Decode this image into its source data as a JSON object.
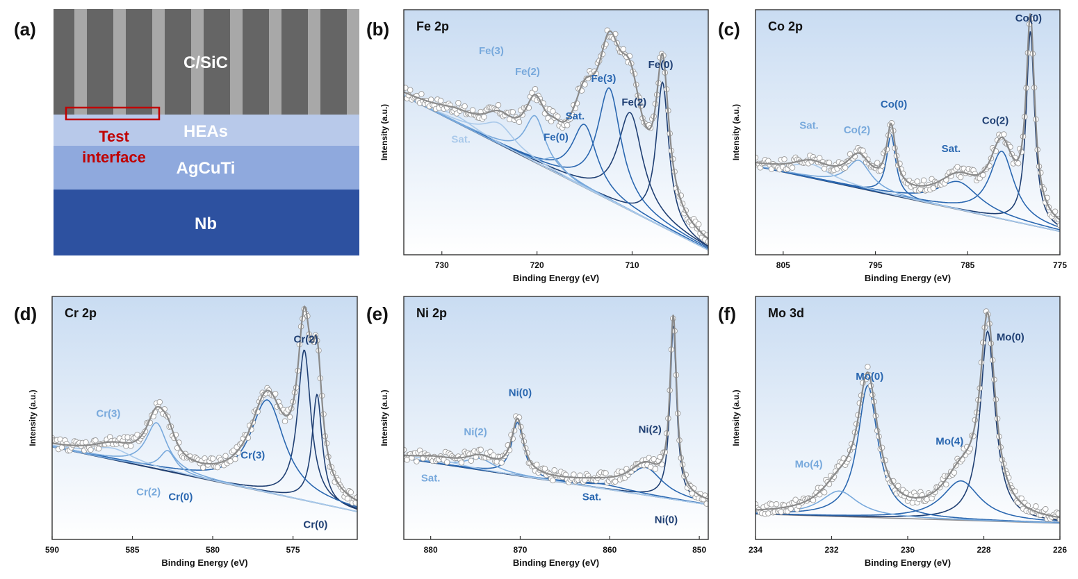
{
  "colors": {
    "series_dark": "#1f3f73",
    "series_mid": "#2a67b0",
    "series_light": "#78a9dc",
    "series_pale": "#a9c9ea",
    "envelope": "#8a8a8a",
    "background_line": "#8f8f93",
    "panel_bg_top": "#c9dcf2",
    "panel_bg_bottom": "#ffffff",
    "csic_dark": "#656565",
    "csic_light": "#a8a8a8",
    "heas": "#b8c9ea",
    "agcuti": "#8fa9dd",
    "nb": "#2d51a0",
    "test_label": "#c00000"
  },
  "panel_a": {
    "tag": "(a)",
    "layers": {
      "csic": "C/SiC",
      "heas": "HEAs",
      "agcuti": "AgCuTi",
      "nb": "Nb"
    },
    "test_line1": "Test",
    "test_line2": "interface"
  },
  "chart_data": [
    {
      "id": "b",
      "tag": "(b)",
      "type": "line",
      "title": "Fe 2p",
      "xlabel": "Binding Energy (eV)",
      "ylabel": "Intensity (a.u.)",
      "xlim": [
        734,
        702
      ],
      "ylim": [
        0,
        1.05
      ],
      "xticks": [
        730,
        720,
        710
      ],
      "background": [
        [
          734,
          0.68
        ],
        [
          702,
          0.02
        ]
      ],
      "peaks": [
        {
          "label": "Fe(0)",
          "center": 706.8,
          "height": 0.62,
          "width": 0.8,
          "color": "dark"
        },
        {
          "label": "Fe(2)",
          "center": 710.2,
          "height": 0.42,
          "width": 1.6,
          "color": "dark"
        },
        {
          "label": "Fe(3)",
          "center": 712.4,
          "height": 0.48,
          "width": 1.5,
          "color": "mid"
        },
        {
          "label": "Sat.",
          "center": 715.0,
          "height": 0.27,
          "width": 1.6,
          "color": "mid"
        },
        {
          "label": "Fe(0)",
          "center": 718.2,
          "height": 0.06,
          "width": 1.2,
          "color": "light"
        },
        {
          "label": "Fe(2)",
          "center": 720.2,
          "height": 0.2,
          "width": 1.3,
          "color": "light"
        },
        {
          "label": "Fe(3)",
          "center": 724.0,
          "height": 0.09,
          "width": 2.0,
          "color": "pale"
        },
        {
          "label": "Sat.",
          "center": 728.5,
          "height": 0.03,
          "width": 2.5,
          "color": "pale"
        }
      ],
      "annotations": [
        {
          "text": "Fe(0)",
          "x": 707.0,
          "y": 0.8,
          "color": "dark"
        },
        {
          "text": "Fe(2)",
          "x": 709.8,
          "y": 0.64,
          "color": "dark"
        },
        {
          "text": "Fe(3)",
          "x": 713.0,
          "y": 0.74,
          "color": "mid"
        },
        {
          "text": "Sat.",
          "x": 716.0,
          "y": 0.58,
          "color": "mid"
        },
        {
          "text": "Fe(0)",
          "x": 718.0,
          "y": 0.49,
          "color": "mid"
        },
        {
          "text": "Fe(2)",
          "x": 721.0,
          "y": 0.77,
          "color": "light"
        },
        {
          "text": "Fe(3)",
          "x": 724.8,
          "y": 0.86,
          "color": "light"
        },
        {
          "text": "Sat.",
          "x": 728.0,
          "y": 0.48,
          "color": "pale"
        }
      ]
    },
    {
      "id": "c",
      "tag": "(c)",
      "type": "line",
      "title": "Co 2p",
      "xlabel": "Binding Energy (eV)",
      "ylabel": "Intensity (a.u.)",
      "xlim": [
        808,
        775
      ],
      "ylim": [
        0,
        1.05
      ],
      "xticks": [
        805,
        795,
        785,
        775
      ],
      "background": [
        [
          808,
          0.38
        ],
        [
          775,
          0.1
        ]
      ],
      "peaks": [
        {
          "label": "Co(0)",
          "center": 778.2,
          "height": 0.83,
          "width": 0.55,
          "color": "dark"
        },
        {
          "label": "Co(2)",
          "center": 781.3,
          "height": 0.29,
          "width": 1.6,
          "color": "mid"
        },
        {
          "label": "Sat.",
          "center": 786.0,
          "height": 0.12,
          "width": 2.8,
          "color": "mid"
        },
        {
          "label": "Co(0)",
          "center": 793.3,
          "height": 0.26,
          "width": 0.6,
          "color": "mid"
        },
        {
          "label": "Co(2)",
          "center": 796.8,
          "height": 0.12,
          "width": 1.6,
          "color": "light"
        },
        {
          "label": "Sat.",
          "center": 802.0,
          "height": 0.06,
          "width": 2.6,
          "color": "pale"
        }
      ],
      "annotations": [
        {
          "text": "Co(0)",
          "x": 778.4,
          "y": 1.0,
          "color": "dark"
        },
        {
          "text": "Co(2)",
          "x": 782.0,
          "y": 0.56,
          "color": "dark"
        },
        {
          "text": "Sat.",
          "x": 786.8,
          "y": 0.44,
          "color": "mid"
        },
        {
          "text": "Co(0)",
          "x": 793.0,
          "y": 0.63,
          "color": "mid"
        },
        {
          "text": "Co(2)",
          "x": 797.0,
          "y": 0.52,
          "color": "light"
        },
        {
          "text": "Sat.",
          "x": 802.2,
          "y": 0.54,
          "color": "light"
        }
      ]
    },
    {
      "id": "d",
      "tag": "(d)",
      "type": "line",
      "title": "Cr 2p",
      "xlabel": "Binding Energy (eV)",
      "ylabel": "Intensity (a.u.)",
      "xlim": [
        590,
        571
      ],
      "ylim": [
        0,
        1.05
      ],
      "xticks": [
        590,
        585,
        580,
        575
      ],
      "background": [
        [
          590,
          0.4
        ],
        [
          571,
          0.12
        ]
      ],
      "peaks": [
        {
          "label": "Cr(0)",
          "center": 573.5,
          "height": 0.47,
          "width": 0.38,
          "color": "dark"
        },
        {
          "label": "Cr(2)",
          "center": 574.3,
          "height": 0.65,
          "width": 0.5,
          "color": "dark"
        },
        {
          "label": "Cr(3)",
          "center": 576.6,
          "height": 0.4,
          "width": 1.3,
          "color": "mid"
        },
        {
          "label": "Cr(0)",
          "center": 582.8,
          "height": 0.09,
          "width": 0.6,
          "color": "light"
        },
        {
          "label": "Cr(2)",
          "center": 583.5,
          "height": 0.2,
          "width": 0.8,
          "color": "light"
        },
        {
          "label": "Cr(3)",
          "center": 586.2,
          "height": 0.05,
          "width": 1.6,
          "color": "pale"
        }
      ],
      "annotations": [
        {
          "text": "Cr(0)",
          "x": 573.6,
          "y": 0.05,
          "color": "dark"
        },
        {
          "text": "Cr(2)",
          "x": 574.2,
          "y": 0.85,
          "color": "dark"
        },
        {
          "text": "Cr(3)",
          "x": 577.5,
          "y": 0.35,
          "color": "mid"
        },
        {
          "text": "Cr(0)",
          "x": 582.0,
          "y": 0.17,
          "color": "mid"
        },
        {
          "text": "Cr(2)",
          "x": 584.0,
          "y": 0.19,
          "color": "light"
        },
        {
          "text": "Cr(3)",
          "x": 586.5,
          "y": 0.53,
          "color": "light"
        }
      ]
    },
    {
      "id": "e",
      "tag": "(e)",
      "type": "line",
      "title": "Ni 2p",
      "xlabel": "Binding Energy (eV)",
      "ylabel": "Intensity (a.u.)",
      "xlim": [
        883,
        849
      ],
      "ylim": [
        0,
        1.05
      ],
      "xticks": [
        880,
        870,
        860,
        850
      ],
      "background": [
        [
          883,
          0.35
        ],
        [
          849,
          0.15
        ]
      ],
      "peaks": [
        {
          "label": "Ni(0)",
          "center": 852.9,
          "height": 0.75,
          "width": 0.45,
          "color": "dark"
        },
        {
          "label": "Ni(2)",
          "center": 856.0,
          "height": 0.12,
          "width": 2.3,
          "color": "mid"
        },
        {
          "label": "Sat.",
          "center": 861.0,
          "height": 0.02,
          "width": 4.0,
          "color": "mid"
        },
        {
          "label": "Ni(0)",
          "center": 870.3,
          "height": 0.23,
          "width": 0.8,
          "color": "mid"
        },
        {
          "label": "Ni(2)",
          "center": 874.5,
          "height": 0.05,
          "width": 2.0,
          "color": "light"
        },
        {
          "label": "Sat.",
          "center": 879.5,
          "height": 0.02,
          "width": 3.0,
          "color": "pale"
        }
      ],
      "annotations": [
        {
          "text": "Ni(0)",
          "x": 853.7,
          "y": 0.07,
          "color": "dark"
        },
        {
          "text": "Ni(2)",
          "x": 855.5,
          "y": 0.46,
          "color": "dark"
        },
        {
          "text": "Sat.",
          "x": 862.0,
          "y": 0.17,
          "color": "mid"
        },
        {
          "text": "Ni(0)",
          "x": 870.0,
          "y": 0.62,
          "color": "mid"
        },
        {
          "text": "Ni(2)",
          "x": 875.0,
          "y": 0.45,
          "color": "light"
        },
        {
          "text": "Sat.",
          "x": 880.0,
          "y": 0.25,
          "color": "light"
        }
      ]
    },
    {
      "id": "f",
      "tag": "(f)",
      "type": "line",
      "title": "Mo 3d",
      "xlabel": "Binding Energy (eV)",
      "ylabel": "Intensity (a.u.)",
      "xlim": [
        234,
        226
      ],
      "ylim": [
        0,
        1.05
      ],
      "xticks": [
        234,
        232,
        230,
        228,
        226
      ],
      "background": [
        [
          234,
          0.11
        ],
        [
          226,
          0.07
        ]
      ],
      "peaks": [
        {
          "label": "Mo(0)",
          "center": 227.9,
          "height": 0.82,
          "width": 0.24,
          "color": "dark"
        },
        {
          "label": "Mo(4)",
          "center": 228.6,
          "height": 0.17,
          "width": 0.6,
          "color": "mid"
        },
        {
          "label": "Mo(0)",
          "center": 231.05,
          "height": 0.57,
          "width": 0.32,
          "color": "mid"
        },
        {
          "label": "Mo(4)",
          "center": 231.8,
          "height": 0.11,
          "width": 0.6,
          "color": "light"
        }
      ],
      "annotations": [
        {
          "text": "Mo(0)",
          "x": 227.3,
          "y": 0.86,
          "color": "dark"
        },
        {
          "text": "Mo(4)",
          "x": 228.9,
          "y": 0.41,
          "color": "mid"
        },
        {
          "text": "Mo(0)",
          "x": 231.0,
          "y": 0.69,
          "color": "mid"
        },
        {
          "text": "Mo(4)",
          "x": 232.6,
          "y": 0.31,
          "color": "light"
        }
      ]
    }
  ]
}
